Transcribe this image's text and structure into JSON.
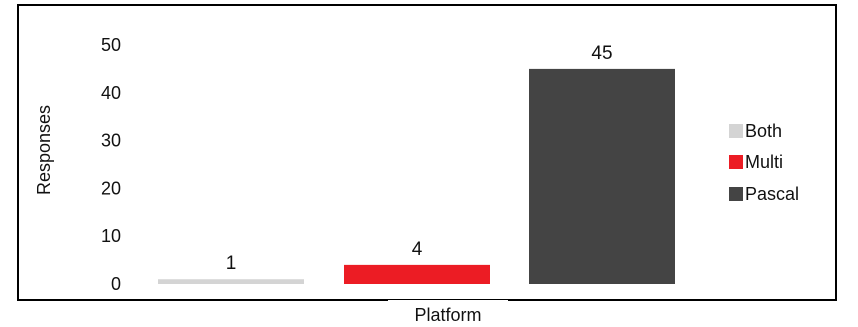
{
  "chart_data": {
    "type": "bar",
    "title": "",
    "xlabel": "Platform",
    "ylabel": "Responses",
    "categories": [
      "Both",
      "Multi",
      "Pascal"
    ],
    "values": [
      1,
      4,
      45
    ],
    "colors": [
      "#d4d4d4",
      "#ec1c24",
      "#444444"
    ],
    "ylim": [
      0,
      50
    ],
    "yticks": [
      0,
      10,
      20,
      30,
      40,
      50
    ],
    "grid": false,
    "legend": {
      "placement": "right",
      "entries": [
        "Both",
        "Multi",
        "Pascal"
      ]
    },
    "data_labels": [
      "1",
      "4",
      "45"
    ]
  }
}
